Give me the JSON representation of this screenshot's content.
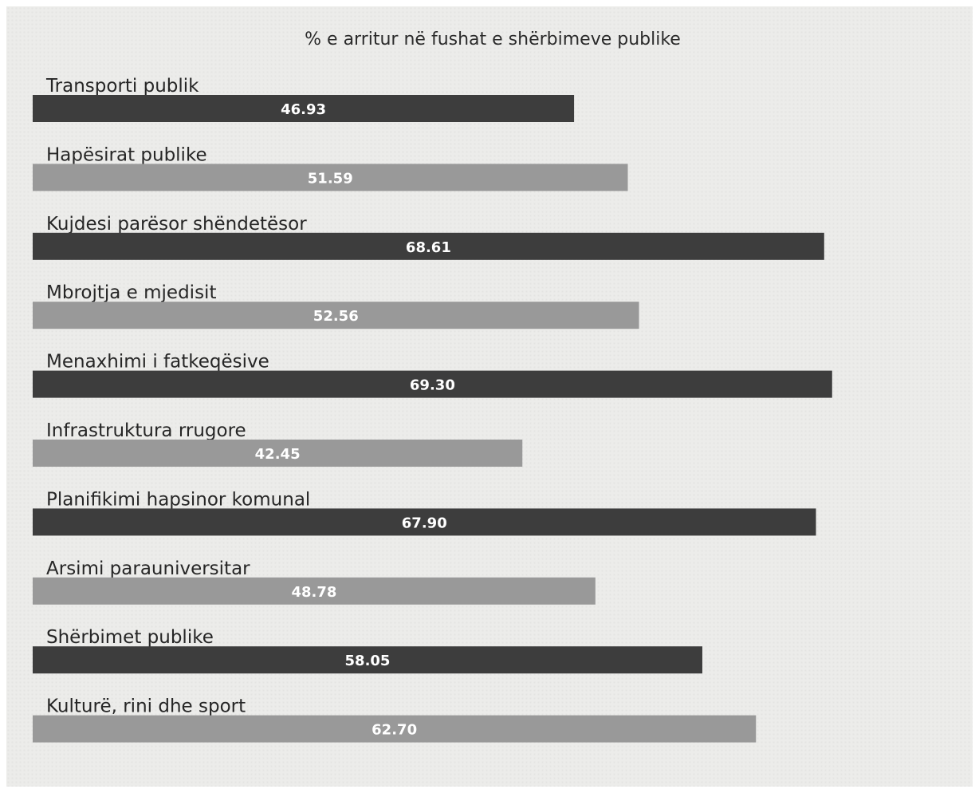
{
  "chart_data": {
    "type": "bar",
    "orientation": "horizontal",
    "title": "% e arritur në fushat e shërbimeve publike",
    "categories": [
      "Transporti publik",
      "Hapësirat publike",
      "Kujdesi parësor shëndetësor",
      "Mbrojtja e mjedisit",
      "Menaxhimi i fatkeqësive",
      "Infrastruktura rrugore",
      "Planifikimi hapsinor komunal",
      "Arsimi parauniversitar",
      "Shërbimet publike",
      "Kulturë, rini dhe sport"
    ],
    "values": [
      46.93,
      51.59,
      68.61,
      52.56,
      69.3,
      42.45,
      67.9,
      48.78,
      58.05,
      62.7
    ],
    "value_labels": [
      "46.93",
      "51.59",
      "68.61",
      "52.56",
      "69.30",
      "42.45",
      "67.90",
      "48.78",
      "58.05",
      "62.70"
    ],
    "xlim": [
      0,
      100
    ],
    "grid": false,
    "legend": "none",
    "colors": {
      "dark_bar": "#3d3d3d",
      "light_bar": "#999999",
      "background": "#ececea",
      "label_text": "#262626",
      "value_text": "#ffffff"
    }
  }
}
